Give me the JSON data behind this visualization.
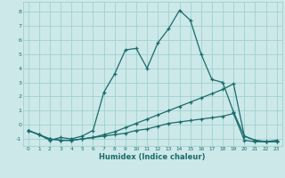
{
  "xlabel": "Humidex (Indice chaleur)",
  "background_color": "#cce8e8",
  "grid_color": "#99cccc",
  "line_color": "#1a6b6b",
  "xlim": [
    -0.5,
    23.5
  ],
  "ylim": [
    -1.5,
    8.7
  ],
  "yticks": [
    -1,
    0,
    1,
    2,
    3,
    4,
    5,
    6,
    7,
    8
  ],
  "xticks": [
    0,
    1,
    2,
    3,
    4,
    5,
    6,
    7,
    8,
    9,
    10,
    11,
    12,
    13,
    14,
    15,
    16,
    17,
    18,
    19,
    20,
    21,
    22,
    23
  ],
  "line1_x": [
    0,
    1,
    2,
    3,
    4,
    5,
    6,
    7,
    8,
    9,
    10,
    11,
    12,
    13,
    14,
    15,
    16,
    17,
    18,
    19,
    20,
    21,
    22,
    23
  ],
  "line1_y": [
    -0.4,
    -0.7,
    -1.1,
    -0.9,
    -1.0,
    -0.8,
    -0.4,
    2.3,
    3.6,
    5.3,
    5.4,
    4.0,
    5.8,
    6.8,
    8.1,
    7.4,
    5.0,
    3.2,
    3.0,
    0.9,
    -0.8,
    -1.1,
    -1.2,
    -1.1
  ],
  "line2_x": [
    0,
    1,
    2,
    3,
    4,
    5,
    6,
    7,
    8,
    9,
    10,
    11,
    12,
    13,
    14,
    15,
    16,
    17,
    18,
    19,
    20,
    21,
    22,
    23
  ],
  "line2_y": [
    -0.4,
    -0.7,
    -1.0,
    -1.1,
    -1.1,
    -1.0,
    -0.9,
    -0.7,
    -0.5,
    -0.2,
    0.1,
    0.4,
    0.7,
    1.0,
    1.3,
    1.6,
    1.9,
    2.2,
    2.5,
    2.9,
    -0.8,
    -1.1,
    -1.2,
    -1.2
  ],
  "line3_x": [
    0,
    1,
    2,
    3,
    4,
    5,
    6,
    7,
    8,
    9,
    10,
    11,
    12,
    13,
    14,
    15,
    16,
    17,
    18,
    19,
    20,
    21,
    22,
    23
  ],
  "line3_y": [
    -0.4,
    -0.7,
    -1.0,
    -1.1,
    -1.1,
    -1.0,
    -0.9,
    -0.8,
    -0.7,
    -0.6,
    -0.4,
    -0.3,
    -0.1,
    0.1,
    0.2,
    0.3,
    0.4,
    0.5,
    0.6,
    0.8,
    -1.1,
    -1.2,
    -1.2,
    -1.2
  ]
}
